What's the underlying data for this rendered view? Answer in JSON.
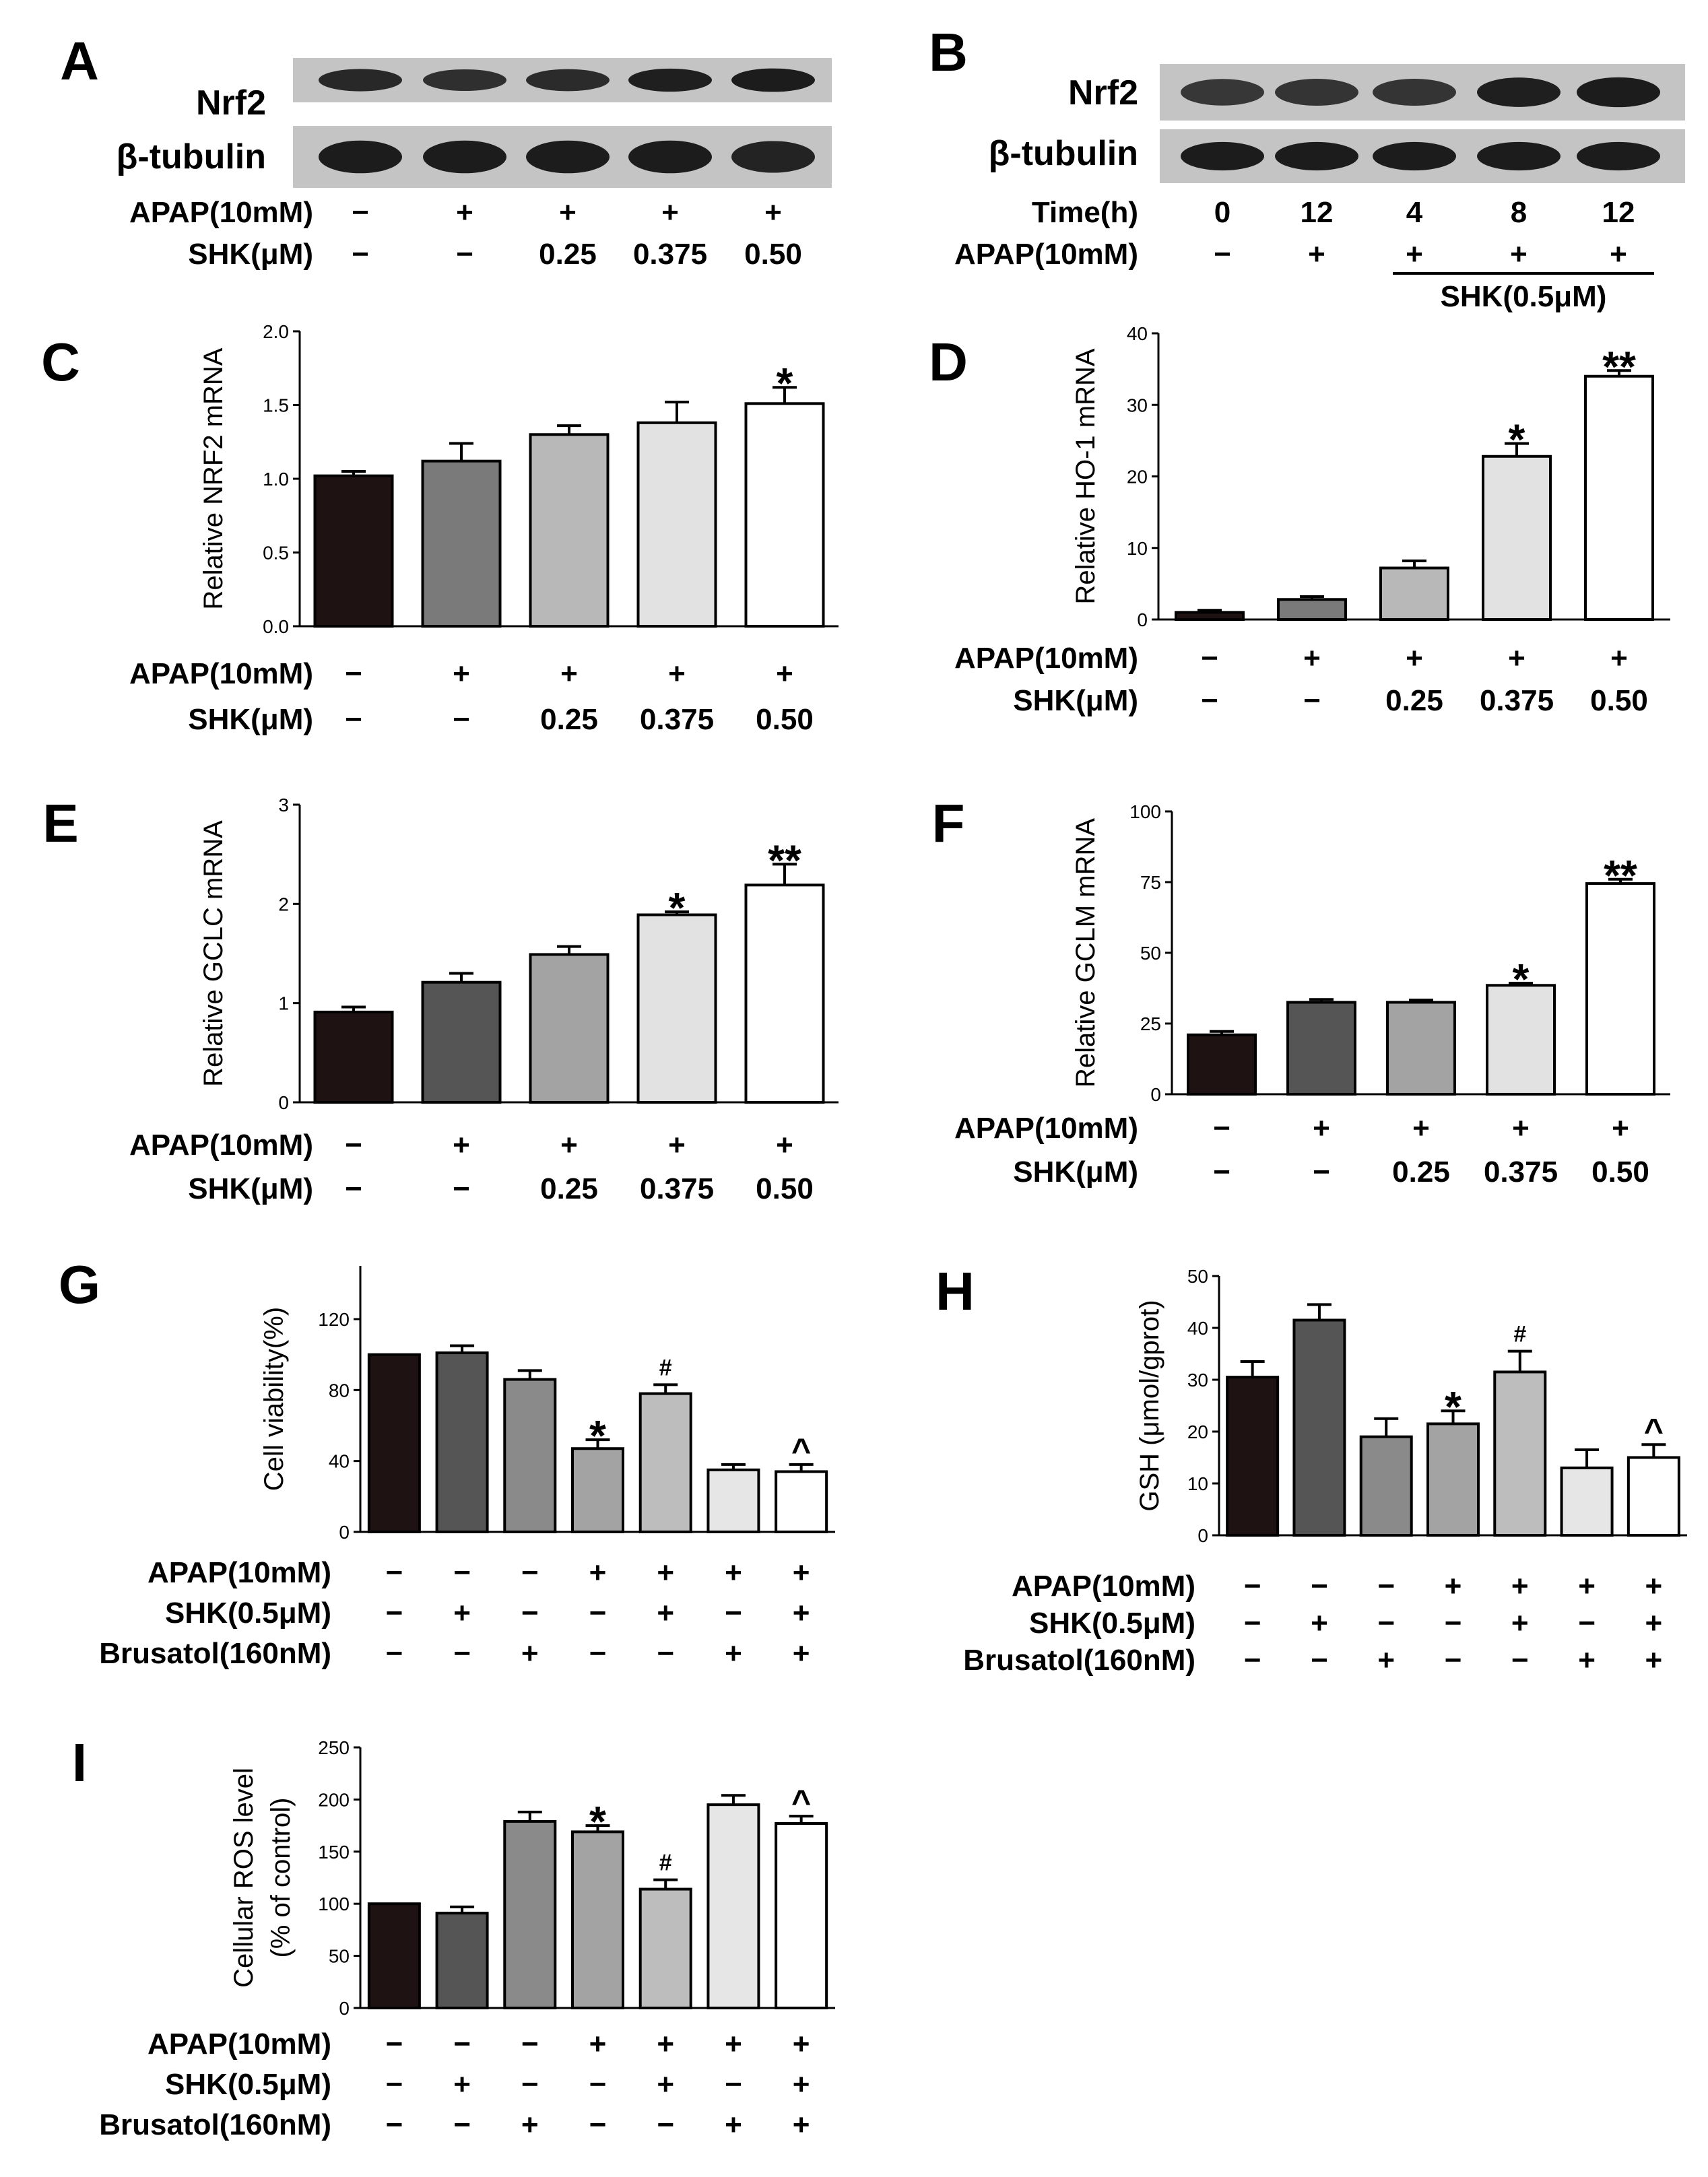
{
  "colors": {
    "bar_colors": [
      "#1f1212",
      "#555555",
      "#8a8a8a",
      "#b0b0b0",
      "#dedede",
      "#ffffff"
    ],
    "blot_bg": "#c4c4c4",
    "band": "#1c1c1c"
  },
  "blots": [
    {
      "letter": "A",
      "rows": [
        {
          "label": "Nrf2",
          "band_strength": [
            0.85,
            0.75,
            0.8,
            0.95,
            1.0
          ]
        },
        {
          "label": "β-tubulin",
          "band_strength": [
            1.0,
            1.0,
            1.0,
            1.0,
            0.9
          ]
        }
      ],
      "conditions": [
        {
          "label": "APAP(10mM)",
          "cells": [
            "−",
            "+",
            "+",
            "+",
            "+"
          ]
        },
        {
          "label": "SHK(μM)",
          "cells": [
            "−",
            "−",
            "0.25",
            "0.375",
            "0.50"
          ]
        }
      ],
      "bracket_label": ""
    },
    {
      "letter": "B",
      "rows": [
        {
          "label": "Nrf2",
          "band_strength": [
            0.65,
            0.7,
            0.7,
            0.95,
            1.0
          ]
        },
        {
          "label": "β-tubulin",
          "band_strength": [
            1.0,
            1.0,
            1.0,
            1.0,
            1.0
          ]
        }
      ],
      "conditions": [
        {
          "label": "Time(h)",
          "cells": [
            "0",
            "12",
            "4",
            "8",
            "12"
          ]
        },
        {
          "label": "APAP(10mM)",
          "cells": [
            "−",
            "+",
            "+",
            "+",
            "+"
          ]
        }
      ],
      "bracket_label": "SHK(0.5μM)"
    }
  ],
  "chart_data": [
    {
      "letter": "C",
      "type": "bar",
      "title": "",
      "xlabel": "",
      "ylabel": "Relative NRF2 mRNA",
      "ylim": [
        0,
        2.0
      ],
      "yticks": [
        "0.0",
        "0.5",
        "1.0",
        "1.5",
        "2.0"
      ],
      "values": [
        1.02,
        1.12,
        1.3,
        1.38,
        1.51
      ],
      "errors": [
        0.03,
        0.12,
        0.06,
        0.14,
        0.11
      ],
      "sig": [
        "",
        "",
        "",
        "",
        "*"
      ],
      "conditions": [
        {
          "label": "APAP(10mM)",
          "cells": [
            "−",
            "+",
            "+",
            "+",
            "+"
          ]
        },
        {
          "label": "SHK(μM)",
          "cells": [
            "−",
            "−",
            "0.25",
            "0.375",
            "0.50"
          ]
        }
      ]
    },
    {
      "letter": "D",
      "type": "bar",
      "title": "",
      "xlabel": "",
      "ylabel": "Relative HO-1 mRNA",
      "ylim": [
        0,
        40
      ],
      "yticks": [
        "0",
        "10",
        "20",
        "30",
        "40"
      ],
      "values": [
        1.0,
        2.8,
        7.2,
        22.8,
        34.0
      ],
      "errors": [
        0.3,
        0.4,
        1.0,
        1.8,
        0.8
      ],
      "sig": [
        "",
        "",
        "",
        "*",
        "**"
      ],
      "conditions": [
        {
          "label": "APAP(10mM)",
          "cells": [
            "−",
            "+",
            "+",
            "+",
            "+"
          ]
        },
        {
          "label": "SHK(μM)",
          "cells": [
            "−",
            "−",
            "0.25",
            "0.375",
            "0.50"
          ]
        }
      ]
    },
    {
      "letter": "E",
      "type": "bar",
      "title": "",
      "xlabel": "",
      "ylabel": "Relative GCLC mRNA",
      "ylim": [
        0,
        3
      ],
      "yticks": [
        "0",
        "1",
        "2",
        "3"
      ],
      "values": [
        0.91,
        1.21,
        1.49,
        1.89,
        2.19
      ],
      "errors": [
        0.05,
        0.09,
        0.08,
        0.03,
        0.21
      ],
      "sig": [
        "",
        "",
        "",
        "*",
        "**"
      ],
      "conditions": [
        {
          "label": "APAP(10mM)",
          "cells": [
            "−",
            "+",
            "+",
            "+",
            "+"
          ]
        },
        {
          "label": "SHK(μM)",
          "cells": [
            "−",
            "−",
            "0.25",
            "0.375",
            "0.50"
          ]
        }
      ]
    },
    {
      "letter": "F",
      "type": "bar",
      "title": "",
      "xlabel": "",
      "ylabel": "Relative GCLM mRNA",
      "ylim": [
        0,
        100
      ],
      "yticks": [
        "0",
        "25",
        "50",
        "75",
        "100"
      ],
      "values": [
        21,
        32.5,
        32.5,
        38.5,
        74.5
      ],
      "errors": [
        1.2,
        1.0,
        0.8,
        0.8,
        1.5
      ],
      "sig": [
        "",
        "",
        "",
        "*",
        "**"
      ],
      "conditions": [
        {
          "label": "APAP(10mM)",
          "cells": [
            "−",
            "+",
            "+",
            "+",
            "+"
          ]
        },
        {
          "label": "SHK(μM)",
          "cells": [
            "−",
            "−",
            "0.25",
            "0.375",
            "0.50"
          ]
        }
      ]
    },
    {
      "letter": "G",
      "type": "bar",
      "title": "",
      "xlabel": "",
      "ylabel": "Cell viability(%)",
      "ylim": [
        0,
        150
      ],
      "yticks": [
        "0",
        "40",
        "80",
        "120"
      ],
      "ytick_values": [
        0,
        40,
        80,
        120
      ],
      "values": [
        100,
        101,
        86,
        47,
        78,
        35,
        34
      ],
      "errors": [
        0,
        4,
        5,
        5,
        5,
        3,
        4
      ],
      "sig": [
        "",
        "",
        "",
        "*",
        "#",
        "",
        "^"
      ],
      "conditions": [
        {
          "label": "APAP(10mM)",
          "cells": [
            "−",
            "−",
            "−",
            "+",
            "+",
            "+",
            "+"
          ]
        },
        {
          "label": "SHK(0.5μM)",
          "cells": [
            "−",
            "+",
            "−",
            "−",
            "+",
            "−",
            "+"
          ]
        },
        {
          "label": "Brusatol(160nM)",
          "cells": [
            "−",
            "−",
            "+",
            "−",
            "−",
            "+",
            "+"
          ]
        }
      ]
    },
    {
      "letter": "H",
      "type": "bar",
      "title": "",
      "xlabel": "",
      "ylabel": "GSH (μmol/gprot)",
      "ylim": [
        0,
        50
      ],
      "yticks": [
        "0",
        "10",
        "20",
        "30",
        "40",
        "50"
      ],
      "values": [
        30.5,
        41.5,
        19,
        21.5,
        31.5,
        13,
        15
      ],
      "errors": [
        3,
        3,
        3.5,
        2.5,
        4,
        3.5,
        2.5
      ],
      "sig": [
        "",
        "",
        "",
        "*",
        "#",
        "",
        "^"
      ],
      "conditions": [
        {
          "label": "APAP(10mM)",
          "cells": [
            "−",
            "−",
            "−",
            "+",
            "+",
            "+",
            "+"
          ]
        },
        {
          "label": "SHK(0.5μM)",
          "cells": [
            "−",
            "+",
            "−",
            "−",
            "+",
            "−",
            "+"
          ]
        },
        {
          "label": "Brusatol(160nM)",
          "cells": [
            "−",
            "−",
            "+",
            "−",
            "−",
            "+",
            "+"
          ]
        }
      ]
    },
    {
      "letter": "I",
      "type": "bar",
      "title": "",
      "xlabel": "",
      "ylabel": "Cellular ROS level",
      "ylabel2": "(% of control)",
      "ylim": [
        0,
        250
      ],
      "yticks": [
        "0",
        "50",
        "100",
        "150",
        "200",
        "250"
      ],
      "values": [
        100,
        91,
        179,
        169,
        114,
        195,
        177
      ],
      "errors": [
        0,
        6,
        9,
        6,
        9,
        9,
        7
      ],
      "sig": [
        "",
        "",
        "",
        "*",
        "#",
        "",
        "^"
      ],
      "conditions": [
        {
          "label": "APAP(10mM)",
          "cells": [
            "−",
            "−",
            "−",
            "+",
            "+",
            "+",
            "+"
          ]
        },
        {
          "label": "SHK(0.5μM)",
          "cells": [
            "−",
            "+",
            "−",
            "−",
            "+",
            "−",
            "+"
          ]
        },
        {
          "label": "Brusatol(160nM)",
          "cells": [
            "−",
            "−",
            "+",
            "−",
            "−",
            "+",
            "+"
          ]
        }
      ]
    }
  ]
}
